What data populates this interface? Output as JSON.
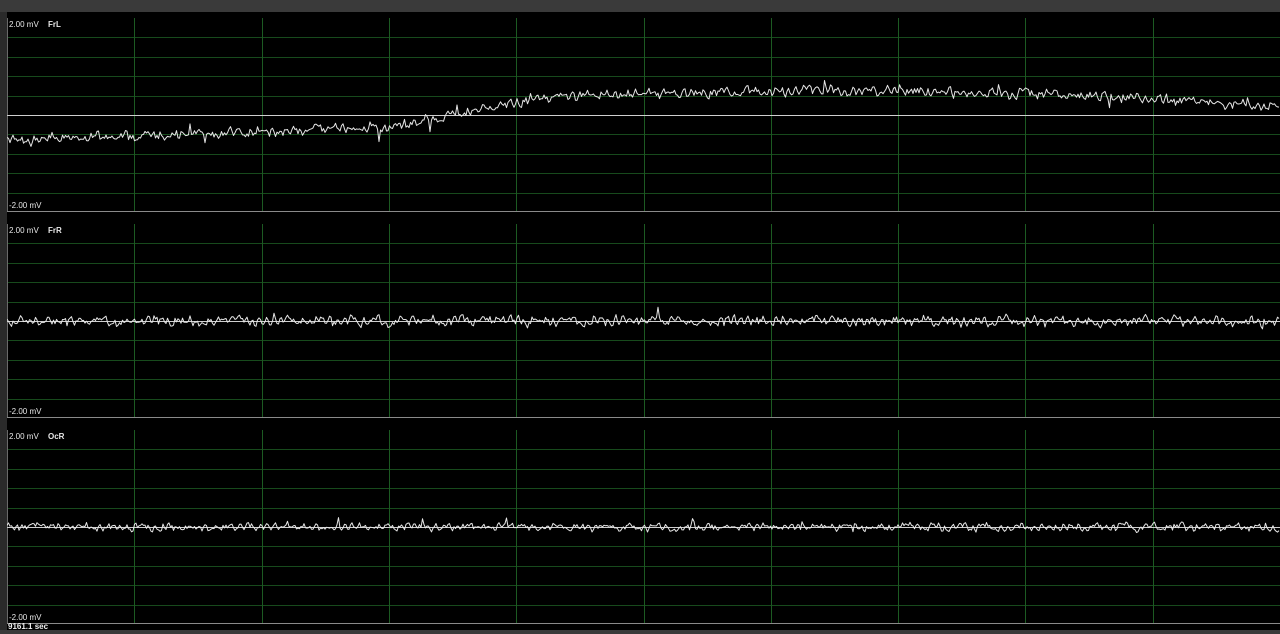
{
  "channels": [
    {
      "name": "FrL",
      "scale_top": "2.00 mV",
      "scale_bottom": "-2.00 mV"
    },
    {
      "name": "FrR",
      "scale_top": "2.00 mV",
      "scale_bottom": "-2.00 mV"
    },
    {
      "name": "OcR",
      "scale_top": "2.00 mV",
      "scale_bottom": "-2.00 mV"
    }
  ],
  "time_readout": "9161.1 sec",
  "colors": {
    "background": "#000000",
    "grid_vertical": "#1c5a22",
    "grid_horizontal": "#174a1c",
    "trace": "#e6e6e6",
    "baseline": "#cfcfcf"
  }
}
